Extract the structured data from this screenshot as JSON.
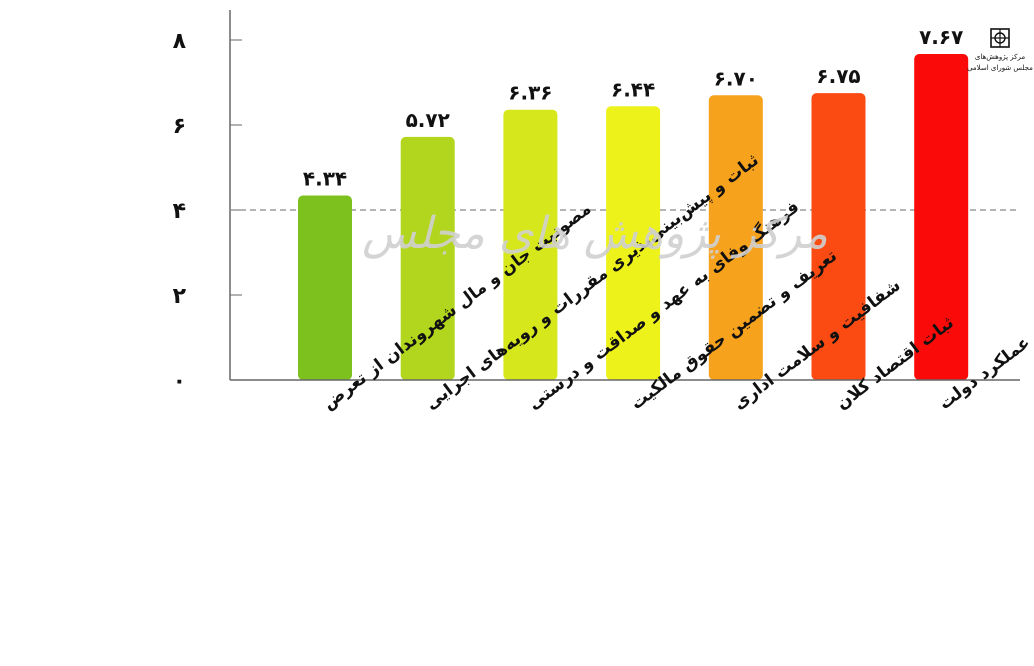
{
  "chart_data": {
    "type": "bar",
    "title": "",
    "xlabel": "",
    "ylabel": "",
    "ylim": [
      0,
      8
    ],
    "yticks": [
      0,
      2,
      4,
      6,
      8
    ],
    "ytick_labels": [
      "۰",
      "۲",
      "۴",
      "۶",
      "۸"
    ],
    "reference_line": 4,
    "grid": false,
    "categories": [
      "مصونیت جان و مال شهروندان از تعرض",
      "ثبات و پیش‌بینی‌پذیری مقررات و رویه‌های اجرایی",
      "فرهنگ وفای به عهد و صداقت و درستی",
      "تعریف و تضمین حقوق مالکیت",
      "شفافیت و سلامت اداری",
      "ثبات اقتصاد کلان",
      "عملکرد دولت"
    ],
    "values": [
      4.34,
      5.72,
      6.36,
      6.44,
      6.7,
      6.75,
      7.67
    ],
    "value_labels": [
      "۴.۳۴",
      "۵.۷۲",
      "۶.۳۶",
      "۶.۴۴",
      "۶.۷۰",
      "۶.۷۵",
      "۷.۶۷"
    ],
    "colors": [
      "#7dc11f",
      "#b2d61d",
      "#d6e81c",
      "#eef21b",
      "#f7a21c",
      "#fb4a12",
      "#fb0a0a"
    ]
  },
  "watermark": "مرکز پژوهش های مجلس",
  "logo": {
    "text_line1": "مرکز پژوهش‌های",
    "text_line2": "مجلس شورای اسلامی"
  }
}
